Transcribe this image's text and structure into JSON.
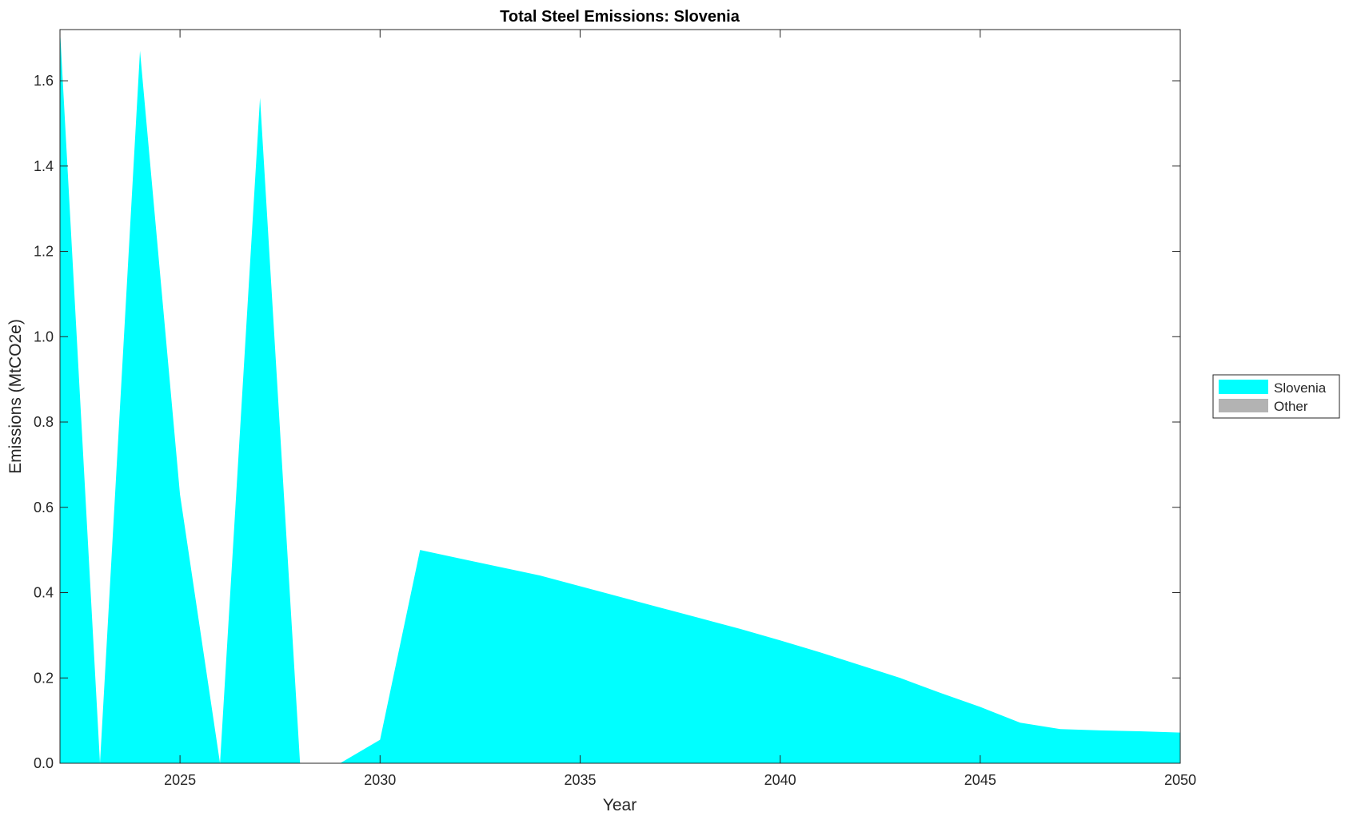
{
  "chart_data": {
    "type": "area",
    "title": "Total Steel Emissions: Slovenia",
    "xlabel": "Year",
    "ylabel": "Emissions (MtCO2e)",
    "xlim": [
      2022,
      2050
    ],
    "ylim": [
      0,
      1.72
    ],
    "xticks": [
      2025,
      2030,
      2035,
      2040,
      2045,
      2050
    ],
    "yticks": [
      0.0,
      0.2,
      0.4,
      0.6,
      0.8,
      1.0,
      1.2,
      1.4,
      1.6
    ],
    "grid": false,
    "legend_position": "right",
    "x": [
      2022,
      2023,
      2024,
      2025,
      2026,
      2027,
      2028,
      2029,
      2030,
      2031,
      2032,
      2033,
      2034,
      2035,
      2036,
      2037,
      2038,
      2039,
      2040,
      2041,
      2042,
      2043,
      2044,
      2045,
      2046,
      2047,
      2048,
      2049,
      2050
    ],
    "series": [
      {
        "name": "Slovenia",
        "color": "#00ffff",
        "values": [
          1.72,
          0,
          1.67,
          0.63,
          0,
          1.56,
          0,
          0,
          0.055,
          0.5,
          0.48,
          0.46,
          0.44,
          0.415,
          0.39,
          0.365,
          0.34,
          0.315,
          0.288,
          0.26,
          0.23,
          0.2,
          0.165,
          0.132,
          0.095,
          0.08,
          0.077,
          0.075,
          0.072
        ]
      },
      {
        "name": "Other",
        "color": "#b3b3b3",
        "values": [
          0,
          0,
          0,
          0,
          0,
          0,
          0,
          0,
          0,
          0,
          0,
          0,
          0,
          0,
          0,
          0,
          0,
          0,
          0,
          0,
          0,
          0,
          0,
          0,
          0,
          0,
          0,
          0,
          0
        ]
      }
    ]
  }
}
